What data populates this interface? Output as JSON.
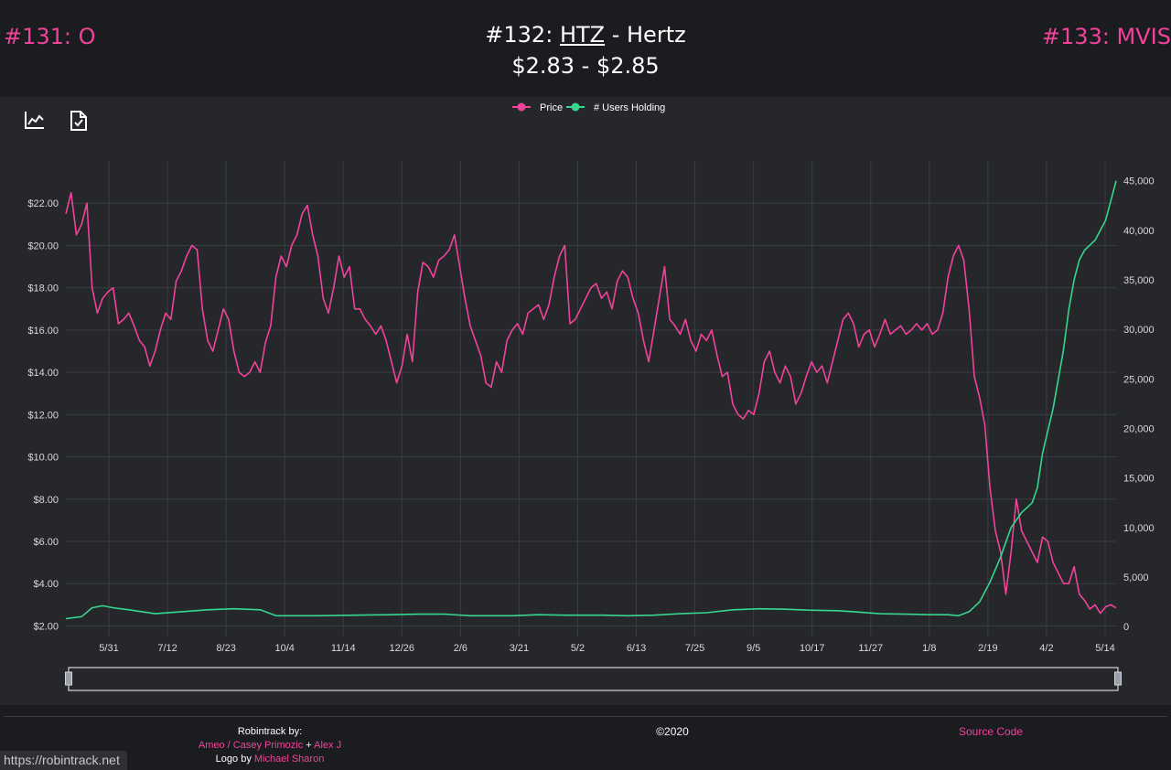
{
  "nav": {
    "prev_label": "#131: O",
    "next_label": "#133: MVIS"
  },
  "header": {
    "rank": "#132:",
    "ticker": "HTZ",
    "name_sep": " - Hertz",
    "price_range": "$2.83 - $2.85"
  },
  "toolbar": {
    "icons": [
      "line-chart-icon",
      "document-check-icon"
    ]
  },
  "colors": {
    "price": "#f1439b",
    "users": "#36d68f",
    "background": "#25272b",
    "grid": "#3a3d42",
    "axis_text": "#d8d8d8"
  },
  "chart_data": {
    "type": "line",
    "title": "",
    "legend_position": "top-center",
    "x_ticks": [
      "5/31",
      "7/12",
      "8/23",
      "10/4",
      "11/14",
      "12/26",
      "2/6",
      "3/21",
      "5/2",
      "6/13",
      "7/25",
      "9/5",
      "10/17",
      "11/27",
      "1/8",
      "2/19",
      "4/2",
      "5/14"
    ],
    "y_left_ticks": [
      "$2.00",
      "$4.00",
      "$6.00",
      "$8.00",
      "$10.00",
      "$12.00",
      "$14.00",
      "$16.00",
      "$18.00",
      "$20.00",
      "$22.00"
    ],
    "y_left_range": [
      1.5,
      24
    ],
    "y_right_ticks": [
      "0",
      "5,000",
      "10,000",
      "15,000",
      "20,000",
      "25,000",
      "30,000",
      "35,000",
      "40,000",
      "45,000"
    ],
    "y_right_range": [
      -1000,
      47000
    ],
    "grid": true,
    "range_selector": true,
    "series": [
      {
        "name": "Price",
        "axis": "left",
        "points": [
          [
            0,
            21.5
          ],
          [
            1,
            22.5
          ],
          [
            2,
            20.5
          ],
          [
            3,
            21
          ],
          [
            4,
            22
          ],
          [
            5,
            18
          ],
          [
            6,
            16.8
          ],
          [
            7,
            17.5
          ],
          [
            8,
            17.8
          ],
          [
            9,
            18
          ],
          [
            10,
            16.3
          ],
          [
            11,
            16.5
          ],
          [
            12,
            16.8
          ],
          [
            13,
            16.2
          ],
          [
            14,
            15.5
          ],
          [
            15,
            15.2
          ],
          [
            16,
            14.3
          ],
          [
            17,
            15
          ],
          [
            18,
            16
          ],
          [
            19,
            16.8
          ],
          [
            20,
            16.5
          ],
          [
            21,
            18.3
          ],
          [
            22,
            18.8
          ],
          [
            23,
            19.5
          ],
          [
            24,
            20
          ],
          [
            25,
            19.8
          ],
          [
            26,
            17
          ],
          [
            27,
            15.5
          ],
          [
            28,
            15
          ],
          [
            29,
            16
          ],
          [
            30,
            17
          ],
          [
            31,
            16.5
          ],
          [
            32,
            15
          ],
          [
            33,
            14
          ],
          [
            34,
            13.8
          ],
          [
            35,
            14
          ],
          [
            36,
            14.5
          ],
          [
            37,
            14
          ],
          [
            38,
            15.4
          ],
          [
            39,
            16.2
          ],
          [
            40,
            18.5
          ],
          [
            41,
            19.5
          ],
          [
            42,
            19
          ],
          [
            43,
            20
          ],
          [
            44,
            20.5
          ],
          [
            45,
            21.5
          ],
          [
            46,
            21.9
          ],
          [
            47,
            20.5
          ],
          [
            48,
            19.5
          ],
          [
            49,
            17.5
          ],
          [
            50,
            16.8
          ],
          [
            51,
            18
          ],
          [
            52,
            19.5
          ],
          [
            53,
            18.5
          ],
          [
            54,
            19
          ],
          [
            55,
            17
          ],
          [
            56,
            17
          ],
          [
            57,
            16.5
          ],
          [
            58,
            16.2
          ],
          [
            59,
            15.8
          ],
          [
            60,
            16.2
          ],
          [
            61,
            15.5
          ],
          [
            62,
            14.5
          ],
          [
            63,
            13.5
          ],
          [
            64,
            14.3
          ],
          [
            65,
            15.8
          ],
          [
            66,
            14.5
          ],
          [
            67,
            17.8
          ],
          [
            68,
            19.2
          ],
          [
            69,
            19
          ],
          [
            70,
            18.5
          ],
          [
            71,
            19.3
          ],
          [
            72,
            19.5
          ],
          [
            73,
            19.8
          ],
          [
            74,
            20.5
          ],
          [
            75,
            19
          ],
          [
            76,
            17.5
          ],
          [
            77,
            16.2
          ],
          [
            78,
            15.5
          ],
          [
            79,
            14.8
          ],
          [
            80,
            13.5
          ],
          [
            81,
            13.3
          ],
          [
            82,
            14.5
          ],
          [
            83,
            14
          ],
          [
            84,
            15.5
          ],
          [
            85,
            16
          ],
          [
            86,
            16.3
          ],
          [
            87,
            15.8
          ],
          [
            88,
            16.8
          ],
          [
            89,
            17
          ],
          [
            90,
            17.2
          ],
          [
            91,
            16.5
          ],
          [
            92,
            17.2
          ],
          [
            93,
            18.5
          ],
          [
            94,
            19.5
          ],
          [
            95,
            20
          ],
          [
            96,
            16.3
          ],
          [
            97,
            16.5
          ],
          [
            98,
            17
          ],
          [
            99,
            17.5
          ],
          [
            100,
            18
          ],
          [
            101,
            18.2
          ],
          [
            102,
            17.5
          ],
          [
            103,
            17.8
          ],
          [
            104,
            17
          ],
          [
            105,
            18.3
          ],
          [
            106,
            18.8
          ],
          [
            107,
            18.5
          ],
          [
            108,
            17.5
          ],
          [
            109,
            16.8
          ],
          [
            110,
            15.5
          ],
          [
            111,
            14.5
          ],
          [
            112,
            16
          ],
          [
            113,
            17.5
          ],
          [
            114,
            19
          ],
          [
            115,
            16.5
          ],
          [
            116,
            16.2
          ],
          [
            117,
            15.8
          ],
          [
            118,
            16.5
          ],
          [
            119,
            15.5
          ],
          [
            120,
            15
          ],
          [
            121,
            15.8
          ],
          [
            122,
            15.5
          ],
          [
            123,
            16
          ],
          [
            124,
            14.8
          ],
          [
            125,
            13.8
          ],
          [
            126,
            14
          ],
          [
            127,
            12.5
          ],
          [
            128,
            12
          ],
          [
            129,
            11.8
          ],
          [
            130,
            12.2
          ],
          [
            131,
            12
          ],
          [
            132,
            13
          ],
          [
            133,
            14.5
          ],
          [
            134,
            15
          ],
          [
            135,
            14
          ],
          [
            136,
            13.5
          ],
          [
            137,
            14.3
          ],
          [
            138,
            13.8
          ],
          [
            139,
            12.5
          ],
          [
            140,
            13
          ],
          [
            141,
            13.8
          ],
          [
            142,
            14.5
          ],
          [
            143,
            14
          ],
          [
            144,
            14.3
          ],
          [
            145,
            13.5
          ],
          [
            146,
            14.5
          ],
          [
            147,
            15.5
          ],
          [
            148,
            16.5
          ],
          [
            149,
            16.8
          ],
          [
            150,
            16.3
          ],
          [
            151,
            15.2
          ],
          [
            152,
            15.8
          ],
          [
            153,
            16
          ],
          [
            154,
            15.2
          ],
          [
            155,
            15.8
          ],
          [
            156,
            16.5
          ],
          [
            157,
            15.8
          ],
          [
            158,
            16
          ],
          [
            159,
            16.2
          ],
          [
            160,
            15.8
          ],
          [
            161,
            16
          ],
          [
            162,
            16.3
          ],
          [
            163,
            16
          ],
          [
            164,
            16.3
          ],
          [
            165,
            15.8
          ],
          [
            166,
            16
          ],
          [
            167,
            16.8
          ],
          [
            168,
            18.5
          ],
          [
            169,
            19.5
          ],
          [
            170,
            20
          ],
          [
            171,
            19.3
          ],
          [
            172,
            17
          ],
          [
            173,
            13.8
          ],
          [
            174,
            12.8
          ],
          [
            175,
            11.5
          ],
          [
            176,
            8.5
          ],
          [
            177,
            6.5
          ],
          [
            178,
            5.5
          ],
          [
            179,
            3.5
          ],
          [
            180,
            5.5
          ],
          [
            181,
            8
          ],
          [
            182,
            6.5
          ],
          [
            183,
            6
          ],
          [
            184,
            5.5
          ],
          [
            185,
            5
          ],
          [
            186,
            6.2
          ],
          [
            187,
            6
          ],
          [
            188,
            5
          ],
          [
            189,
            4.5
          ],
          [
            190,
            4
          ],
          [
            191,
            4
          ],
          [
            192,
            4.8
          ],
          [
            193,
            3.5
          ],
          [
            194,
            3.2
          ],
          [
            195,
            2.8
          ],
          [
            196,
            3
          ],
          [
            197,
            2.6
          ],
          [
            198,
            2.9
          ],
          [
            199,
            3
          ],
          [
            200,
            2.85
          ]
        ]
      },
      {
        "name": "# Users Holding",
        "axis": "right",
        "points": [
          [
            0,
            800
          ],
          [
            3,
            1000
          ],
          [
            5,
            1900
          ],
          [
            7,
            2100
          ],
          [
            9,
            1900
          ],
          [
            12,
            1700
          ],
          [
            17,
            1300
          ],
          [
            22,
            1500
          ],
          [
            27,
            1700
          ],
          [
            32,
            1800
          ],
          [
            37,
            1700
          ],
          [
            40,
            1100
          ],
          [
            48,
            1100
          ],
          [
            55,
            1150
          ],
          [
            62,
            1200
          ],
          [
            67,
            1250
          ],
          [
            72,
            1250
          ],
          [
            77,
            1100
          ],
          [
            85,
            1100
          ],
          [
            90,
            1200
          ],
          [
            95,
            1150
          ],
          [
            102,
            1150
          ],
          [
            107,
            1100
          ],
          [
            112,
            1150
          ],
          [
            117,
            1300
          ],
          [
            122,
            1400
          ],
          [
            127,
            1700
          ],
          [
            132,
            1800
          ],
          [
            137,
            1750
          ],
          [
            142,
            1650
          ],
          [
            147,
            1600
          ],
          [
            150,
            1500
          ],
          [
            155,
            1300
          ],
          [
            160,
            1250
          ],
          [
            165,
            1200
          ],
          [
            168,
            1200
          ],
          [
            170,
            1100
          ],
          [
            172,
            1500
          ],
          [
            174,
            2500
          ],
          [
            176,
            4500
          ],
          [
            178,
            7000
          ],
          [
            180,
            10000
          ],
          [
            182,
            11500
          ],
          [
            184,
            12500
          ],
          [
            185,
            14000
          ],
          [
            186,
            17500
          ],
          [
            188,
            22000
          ],
          [
            189,
            25000
          ],
          [
            190,
            28000
          ],
          [
            191,
            32000
          ],
          [
            192,
            35000
          ],
          [
            193,
            37000
          ],
          [
            194,
            38000
          ],
          [
            196,
            39000
          ],
          [
            198,
            41000
          ],
          [
            199,
            43000
          ],
          [
            200,
            45000
          ]
        ]
      }
    ]
  },
  "footer": {
    "credits_title": "Robintrack by:",
    "credits_authors": "Ameo / Casey Primozic",
    "credits_plus": " + ",
    "credits_author2": "Alex J",
    "logo_by": "Logo by ",
    "logo_author": "Michael Sharon",
    "copyright": "©2020",
    "source_label": "Source Code"
  },
  "status_url": "https://robintrack.net"
}
